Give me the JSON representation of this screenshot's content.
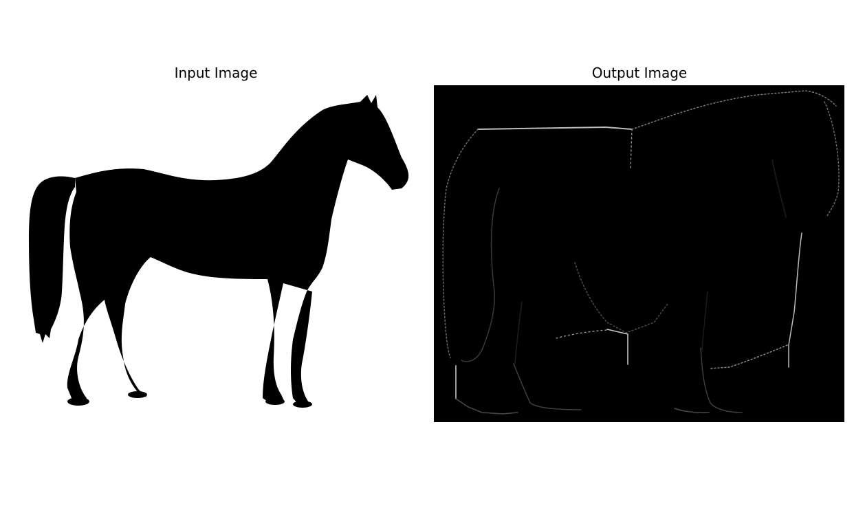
{
  "figure": {
    "left_title": "Input Image",
    "right_title": "Output Image"
  },
  "colors": {
    "background": "#ffffff",
    "silhouette": "#000000",
    "output_background": "#000000",
    "edge_bright": "#bdbdbd",
    "edge_dim": "#4a4a4a"
  },
  "icons": {
    "left_image": "horse-silhouette-image",
    "right_image": "distorted-edge-map-image"
  }
}
